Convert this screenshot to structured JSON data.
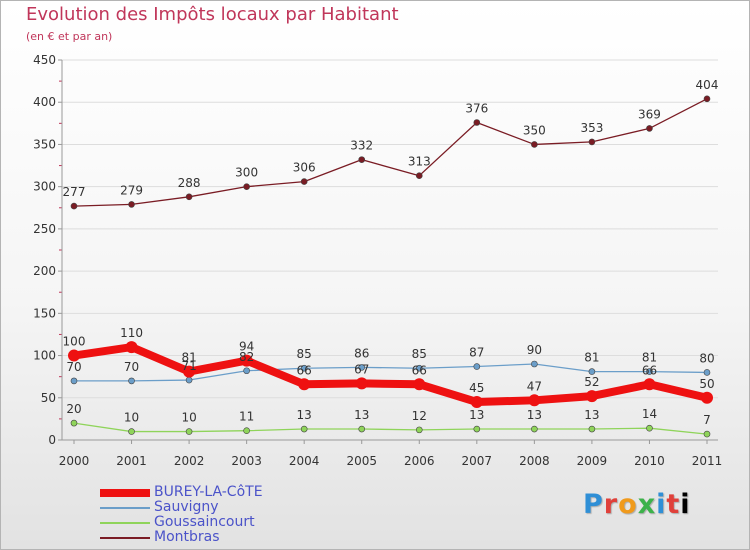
{
  "chart_data": {
    "type": "line",
    "title": "Evolution des Impôts locaux par Habitant",
    "subtitle": "(en € et par an)",
    "xlabel": "",
    "ylabel": "",
    "ylim": [
      0,
      450
    ],
    "yticks": [
      0,
      50,
      100,
      150,
      200,
      250,
      300,
      350,
      400,
      450
    ],
    "categories": [
      "2000",
      "2001",
      "2002",
      "2003",
      "2004",
      "2005",
      "2006",
      "2007",
      "2008",
      "2009",
      "2010",
      "2011"
    ],
    "series": [
      {
        "name": "Montbras",
        "color": "#7a1c24",
        "values": [
          277,
          279,
          288,
          300,
          306,
          332,
          313,
          376,
          350,
          353,
          369,
          404
        ],
        "labels": [
          "277",
          "279",
          "288",
          "300",
          "306",
          "332",
          "313",
          "376",
          "350",
          "353",
          "369",
          "404"
        ]
      },
      {
        "name": "Sauvigny",
        "color": "#6b9ec9",
        "values": [
          70,
          70,
          71,
          82,
          85,
          86,
          85,
          87,
          90,
          81,
          81,
          80
        ],
        "labels": [
          "70",
          "70",
          "71",
          "82",
          "85",
          "86",
          "85",
          "87",
          "90",
          "81",
          "81",
          "80"
        ]
      },
      {
        "name": "Goussaincourt",
        "color": "#8fd45a",
        "values": [
          20,
          10,
          10,
          11,
          13,
          13,
          12,
          13,
          13,
          13,
          14,
          7
        ],
        "labels": [
          "20",
          "10",
          "10",
          "11",
          "13",
          "13",
          "12",
          "13",
          "13",
          "13",
          "14",
          "7"
        ]
      },
      {
        "name": "BUREY-LA-CôTE",
        "color": "#ee1111",
        "values": [
          100,
          110,
          81,
          94,
          66,
          67,
          66,
          45,
          47,
          52,
          66,
          50
        ],
        "labels": [
          "100",
          "110",
          "81",
          "94",
          "66",
          "67",
          "66",
          "45",
          "47",
          "52",
          "66",
          "50"
        ]
      }
    ]
  },
  "legend": {
    "items": [
      {
        "label": "BUREY-LA-CôTE",
        "color": "#ee1111"
      },
      {
        "label": "Sauvigny",
        "color": "#6b9ec9"
      },
      {
        "label": "Goussaincourt",
        "color": "#8fd45a"
      },
      {
        "label": "Montbras",
        "color": "#7a1c24"
      }
    ]
  },
  "logo": {
    "letters": [
      "P",
      "r",
      "o",
      "x",
      "i",
      "t",
      "i"
    ]
  }
}
